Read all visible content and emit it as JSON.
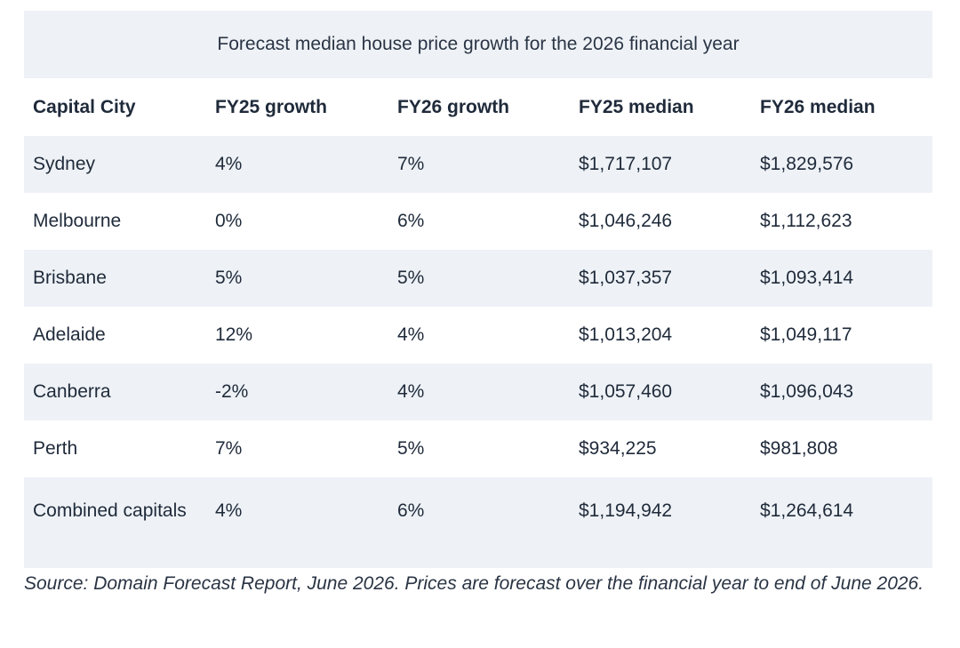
{
  "table": {
    "caption": "Forecast median house price growth for the 2026 financial year",
    "headers": [
      "Capital City",
      "FY25 growth",
      "FY26 growth",
      "FY25 median",
      "FY26 median"
    ],
    "rows": [
      [
        "Sydney",
        "4%",
        "7%",
        "$1,717,107",
        "$1,829,576"
      ],
      [
        "Melbourne",
        "0%",
        "6%",
        "$1,046,246",
        "$1,112,623"
      ],
      [
        "Brisbane",
        "5%",
        "5%",
        "$1,037,357",
        "$1,093,414"
      ],
      [
        "Adelaide",
        "12%",
        "4%",
        "$1,013,204",
        "$1,049,117"
      ],
      [
        "Canberra",
        "-2%",
        "4%",
        "$1,057,460",
        "$1,096,043"
      ],
      [
        "Perth",
        "7%",
        "5%",
        "$934,225",
        "$981,808"
      ],
      [
        "Combined capitals",
        "4%",
        "6%",
        "$1,194,942",
        "$1,264,614"
      ]
    ]
  },
  "source_note": "Source: Domain Forecast Report, June 2026. Prices are forecast over the financial year to end of June 2026.",
  "colors": {
    "stripe": "#eef2f6",
    "text": "#1f2a3a"
  }
}
